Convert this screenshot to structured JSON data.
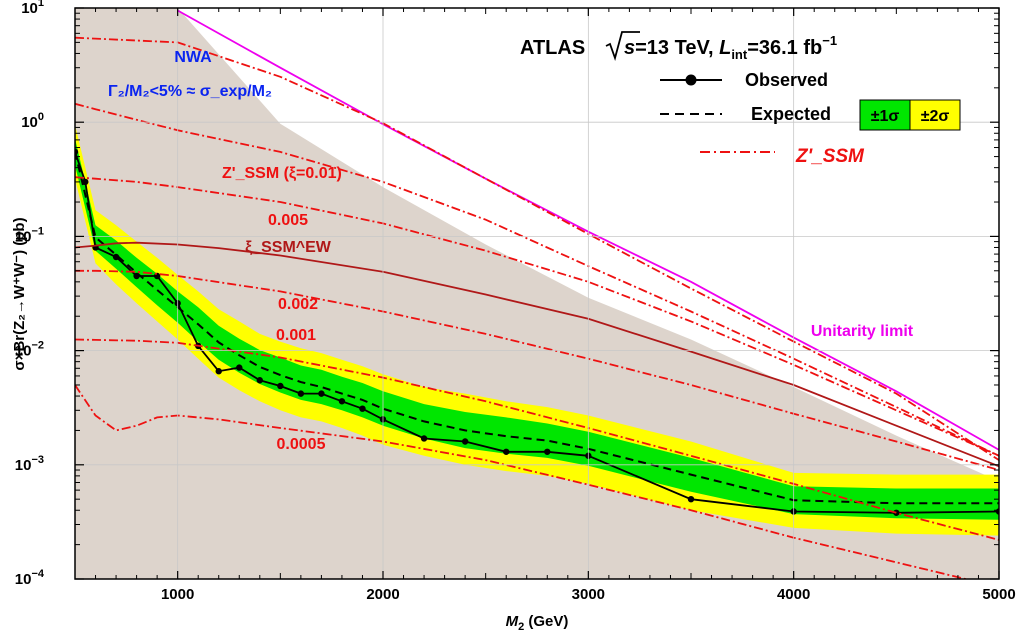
{
  "chart_data": {
    "type": "line",
    "title": "",
    "xlabel": "M",
    "xlabel_sub": "2",
    "xlabel_unit": " (GeV)",
    "ylabel": "σ×Br(Z₂→W⁺W⁻) (pb)",
    "xlim": [
      500,
      5000
    ],
    "ylim": [
      0.0001,
      10
    ],
    "y_scale": "log",
    "grid": true,
    "x_ticks": [
      1000,
      2000,
      3000,
      4000,
      5000
    ],
    "y_ticks": [
      {
        "value": 10,
        "base": "10",
        "exp": "1"
      },
      {
        "value": 1,
        "base": "10",
        "exp": "0"
      },
      {
        "value": 0.1,
        "base": "10",
        "exp": "−1"
      },
      {
        "value": 0.01,
        "base": "10",
        "exp": "−2"
      },
      {
        "value": 0.001,
        "base": "10",
        "exp": "−3"
      },
      {
        "value": 0.0001,
        "base": "10",
        "exp": "−4"
      }
    ],
    "excluded_region": {
      "x": [
        500,
        1000,
        1500,
        2000,
        2500,
        3000,
        3500,
        4000,
        4500,
        5000
      ],
      "y": [
        10,
        10,
        0.97,
        0.27,
        0.085,
        0.029,
        0.0125,
        0.0048,
        0.0018,
        0.00072
      ]
    },
    "expected_band_2sigma": {
      "x": [
        500,
        600,
        700,
        800,
        900,
        1000,
        1100,
        1200,
        1300,
        1400,
        1500,
        1600,
        1700,
        1800,
        1900,
        2000,
        2200,
        2400,
        2600,
        2800,
        3000,
        3500,
        4000,
        4500,
        5000
      ],
      "lower": [
        0.32,
        0.058,
        0.038,
        0.026,
        0.018,
        0.0125,
        0.0085,
        0.0058,
        0.0045,
        0.0036,
        0.003,
        0.0026,
        0.0024,
        0.0021,
        0.0018,
        0.0015,
        0.0012,
        0.001,
        0.00088,
        0.0008,
        0.00068,
        0.0004,
        0.00028,
        0.00025,
        0.00024
      ],
      "upper": [
        0.95,
        0.17,
        0.125,
        0.09,
        0.065,
        0.046,
        0.033,
        0.023,
        0.018,
        0.014,
        0.012,
        0.0105,
        0.0095,
        0.0083,
        0.0073,
        0.0062,
        0.0048,
        0.0042,
        0.0036,
        0.0032,
        0.0027,
        0.0016,
        0.00085,
        0.00082,
        0.00082
      ]
    },
    "expected_band_1sigma": {
      "x": [
        500,
        600,
        700,
        800,
        900,
        1000,
        1100,
        1200,
        1300,
        1400,
        1500,
        1600,
        1700,
        1800,
        1900,
        2000,
        2200,
        2400,
        2600,
        2800,
        3000,
        3500,
        4000,
        4500,
        5000
      ],
      "lower": [
        0.42,
        0.075,
        0.052,
        0.036,
        0.025,
        0.0175,
        0.012,
        0.0083,
        0.0064,
        0.0051,
        0.0043,
        0.0037,
        0.0034,
        0.003,
        0.0026,
        0.0022,
        0.0017,
        0.0014,
        0.00125,
        0.00115,
        0.00098,
        0.00058,
        0.00037,
        0.00034,
        0.00033
      ],
      "upper": [
        0.72,
        0.125,
        0.092,
        0.065,
        0.047,
        0.033,
        0.024,
        0.0165,
        0.0127,
        0.0101,
        0.0087,
        0.0074,
        0.0068,
        0.0059,
        0.0052,
        0.0044,
        0.0034,
        0.0029,
        0.0026,
        0.0023,
        0.00195,
        0.00115,
        0.00065,
        0.00062,
        0.00062
      ]
    },
    "series": [
      {
        "name": "Observed",
        "style": "line-markers",
        "color": "#000000",
        "x": [
          500,
          550,
          600,
          700,
          800,
          900,
          1000,
          1100,
          1200,
          1300,
          1400,
          1500,
          1600,
          1700,
          1800,
          1900,
          2000,
          2200,
          2400,
          2600,
          2800,
          3000,
          3500,
          4000,
          4500,
          5000
        ],
        "y": [
          0.55,
          0.3,
          0.08,
          0.066,
          0.045,
          0.045,
          0.026,
          0.011,
          0.0066,
          0.0071,
          0.0055,
          0.0049,
          0.0042,
          0.0042,
          0.0036,
          0.0031,
          0.0025,
          0.0017,
          0.0016,
          0.0013,
          0.0013,
          0.0012,
          0.0005,
          0.00039,
          0.00038,
          0.00039
        ]
      },
      {
        "name": "Expected",
        "style": "dashed",
        "color": "#000000",
        "x": [
          500,
          600,
          700,
          800,
          900,
          1000,
          1100,
          1200,
          1300,
          1400,
          1500,
          1600,
          1700,
          1800,
          1900,
          2000,
          2200,
          2400,
          2600,
          2800,
          3000,
          3500,
          4000,
          4500,
          5000
        ],
        "y": [
          0.55,
          0.098,
          0.069,
          0.048,
          0.034,
          0.024,
          0.017,
          0.0118,
          0.0091,
          0.0072,
          0.0061,
          0.0053,
          0.0048,
          0.0042,
          0.0037,
          0.0031,
          0.0024,
          0.002,
          0.00178,
          0.00163,
          0.00138,
          0.00082,
          0.00049,
          0.00046,
          0.00046
        ]
      },
      {
        "name": "Unitarity limit",
        "style": "solid",
        "color": "#ee00ee",
        "x": [
          1000,
          1500,
          2000,
          2500,
          3000,
          3500,
          4000,
          4500,
          5000
        ],
        "y": [
          9.5,
          3.0,
          0.96,
          0.32,
          0.11,
          0.04,
          0.013,
          0.0044,
          0.00135
        ]
      },
      {
        "name": "ξ_SSM^EW",
        "style": "solid",
        "color": "#b01818",
        "x": [
          500,
          600,
          700,
          800,
          1000,
          1200,
          1500,
          2000,
          2500,
          3000,
          3500,
          4000,
          4500,
          5000
        ],
        "y": [
          0.08,
          0.083,
          0.087,
          0.088,
          0.085,
          0.079,
          0.068,
          0.049,
          0.031,
          0.019,
          0.0098,
          0.005,
          0.0022,
          0.00097
        ]
      },
      {
        "name": "Z'_SSM",
        "style": "dashdot",
        "color": "#ee1111",
        "x": [
          500,
          1000,
          1500,
          2000,
          2500,
          3000,
          3500,
          4000,
          4500,
          5000
        ],
        "y": [
          5.5,
          5.0,
          2.5,
          0.98,
          0.32,
          0.105,
          0.035,
          0.012,
          0.0042,
          0.0011
        ]
      },
      {
        "name": "Z'_SSM (ξ=0.01)",
        "style": "dashdot",
        "color": "#ee1111",
        "x": [
          500,
          600,
          800,
          1000,
          1500,
          2000,
          2500,
          3000,
          3500,
          4000,
          4500,
          5000
        ],
        "y": [
          1.45,
          1.3,
          1.05,
          0.85,
          0.55,
          0.3,
          0.14,
          0.055,
          0.022,
          0.0085,
          0.0032,
          0.0012
        ]
      },
      {
        "name": "0.005",
        "style": "dashdot",
        "color": "#ee1111",
        "x": [
          500,
          600,
          800,
          1000,
          1500,
          2000,
          2500,
          3000,
          3500,
          4000,
          4500,
          5000
        ],
        "y": [
          0.33,
          0.32,
          0.3,
          0.27,
          0.2,
          0.13,
          0.075,
          0.04,
          0.018,
          0.0075,
          0.003,
          0.0012
        ]
      },
      {
        "name": "0.002",
        "style": "dashdot",
        "color": "#ee1111",
        "x": [
          500,
          600,
          800,
          1000,
          1500,
          2000,
          2500,
          3000,
          3500,
          4000,
          4500,
          5000
        ],
        "y": [
          0.05,
          0.05,
          0.049,
          0.045,
          0.033,
          0.022,
          0.014,
          0.0085,
          0.005,
          0.0028,
          0.0016,
          0.0009
        ]
      },
      {
        "name": "0.001",
        "style": "dashdot",
        "color": "#ee1111",
        "x": [
          500,
          600,
          800,
          1000,
          1500,
          2000,
          2500,
          3000,
          3500,
          4000,
          4500,
          5000
        ],
        "y": [
          0.0125,
          0.0124,
          0.0122,
          0.0117,
          0.0087,
          0.0058,
          0.0036,
          0.0021,
          0.0012,
          0.00068,
          0.00038,
          0.00022
        ]
      },
      {
        "name": "0.0005",
        "style": "dashdot",
        "color": "#ee1111",
        "x": [
          500,
          600,
          700,
          800,
          900,
          1000,
          1200,
          1500,
          2000,
          2500,
          3000,
          3500,
          4000,
          4500,
          5000
        ],
        "y": [
          0.005,
          0.0027,
          0.002,
          0.0022,
          0.0026,
          0.0027,
          0.0025,
          0.0021,
          0.0016,
          0.0011,
          0.00067,
          0.0004,
          0.00023,
          0.00014,
          8.5e-05
        ]
      }
    ],
    "colors": {
      "excluded_fill": "#ddd4cc",
      "band_2sigma": "#ffff00",
      "band_1sigma": "#00e600",
      "nwa_text": "#0a24f0",
      "zssm": "#ee1111",
      "xi_ew": "#b01818",
      "unitarity": "#ee00ee"
    }
  },
  "annotations": {
    "atlas": "ATLAS",
    "sqrt_s": "s",
    "energy": "=13 TeV, ",
    "lumi_symbol": "L",
    "lumi_sub": "int",
    "lumi_value": "=36.1 fb",
    "lumi_exp": "−1",
    "nwa": "NWA",
    "nwa_condition": "Γ₂/M₂<5% ≈ σ_exp/M₂",
    "zssm_label": "Z'_SSM (ξ=0.01)",
    "label_0005": "0.005",
    "xi_ew_label": "ξ_SSM^EW",
    "label_0002": "0.002",
    "label_0001": "0.001",
    "label_00005": "0.0005",
    "unitarity": "Unitarity limit"
  },
  "legend": {
    "position": "top-right",
    "observed": "Observed",
    "expected": "Expected",
    "one_sigma": "±1σ",
    "two_sigma": "±2σ",
    "zssm": "Z'_SSM"
  }
}
